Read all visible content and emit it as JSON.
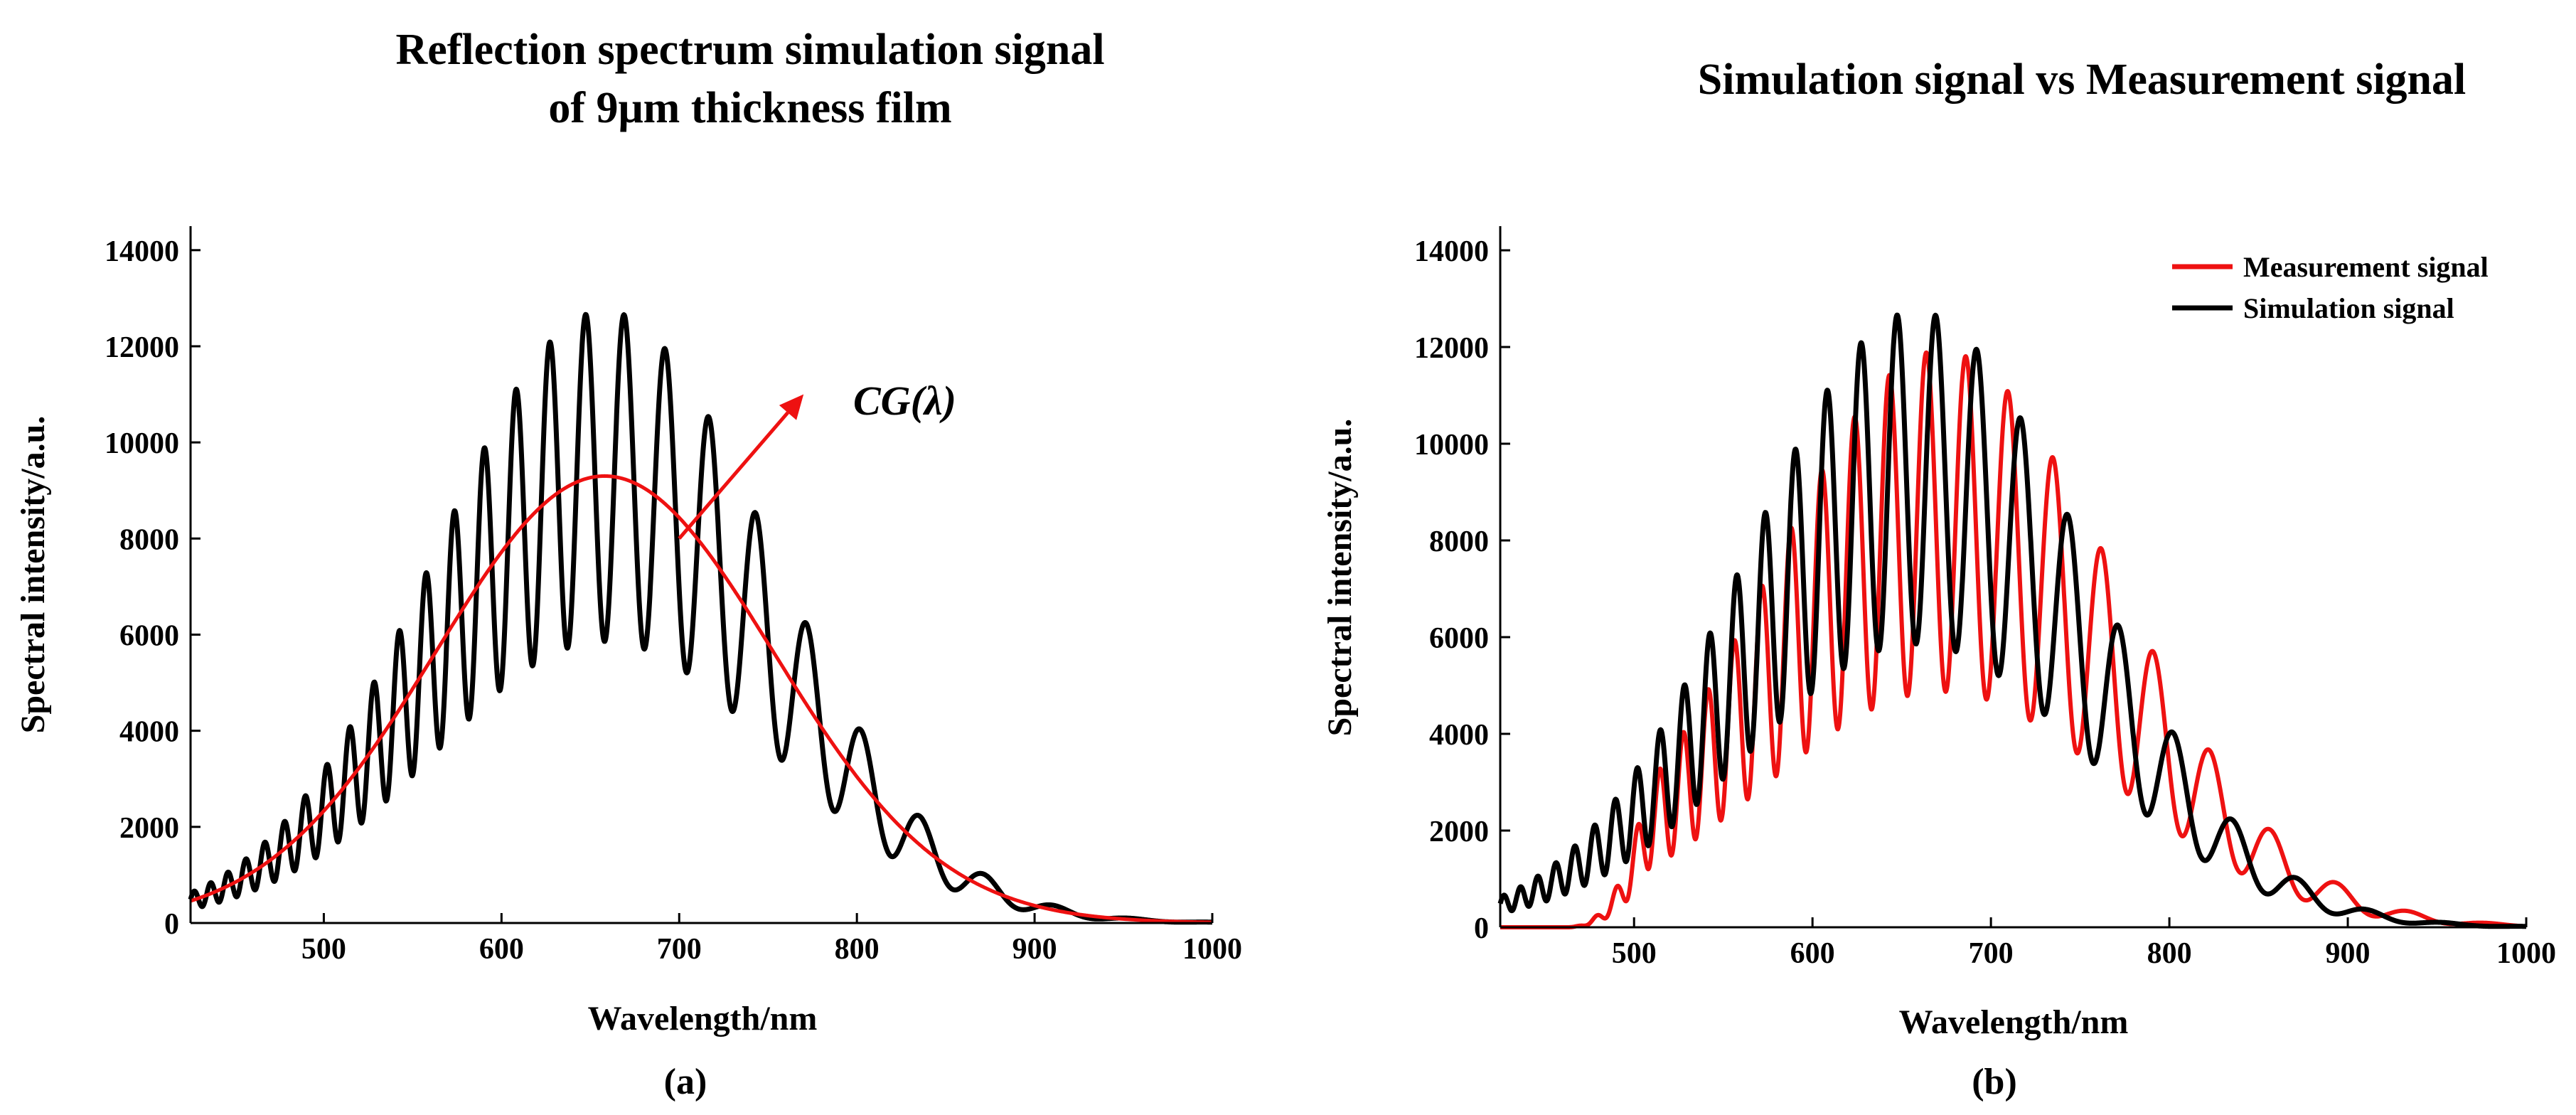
{
  "chart_data": [
    {
      "type": "line",
      "panel_label": "(a)",
      "title_lines": [
        "Reflection spectrum simulation signal",
        "of 9μm thickness film"
      ],
      "xlabel": "Wavelength/nm",
      "ylabel": "Spectral intensity/a.u.",
      "xlim": [
        425,
        1000
      ],
      "ylim": [
        0,
        14500
      ],
      "xticks": [
        500,
        600,
        700,
        800,
        900,
        1000
      ],
      "yticks": [
        0,
        2000,
        4000,
        6000,
        8000,
        10000,
        12000,
        14000
      ],
      "grid": false,
      "annotations": [
        {
          "text": "CG(λ)",
          "style": "italic-bold",
          "arrow_from_x": 700,
          "arrow_from_y": 8000,
          "arrow_to_x": 770,
          "arrow_to_y": 11000
        }
      ],
      "series": [
        {
          "name": "Simulation signal",
          "color": "#000000",
          "model": {
            "center": 658,
            "sigma": 95,
            "peak": 9300,
            "modulation": 0.37,
            "fringe_order_at_center": 30.5,
            "start_x": 425,
            "end_x": 1000
          }
        },
        {
          "name": "CG(λ)",
          "color": "#ee1111",
          "model": {
            "center": 658,
            "sigma": 95,
            "peak": 9300,
            "modulation": 0,
            "start_x": 425,
            "end_x": 1000
          }
        }
      ]
    },
    {
      "type": "line",
      "panel_label": "(b)",
      "title_lines": [
        "Simulation signal vs Measurement signal"
      ],
      "xlabel": "Wavelength/nm",
      "ylabel": "Spectral intensity/a.u.",
      "xlim": [
        425,
        1000
      ],
      "ylim": [
        0,
        14500
      ],
      "xticks": [
        500,
        600,
        700,
        800,
        900,
        1000
      ],
      "yticks": [
        0,
        2000,
        4000,
        6000,
        8000,
        10000,
        12000,
        14000
      ],
      "grid": false,
      "legend_position": "top-right",
      "series": [
        {
          "name": "Measurement signal",
          "color": "#ee1111",
          "model": {
            "center": 672,
            "sigma": 98,
            "peak": 8400,
            "modulation": 0.42,
            "fringe_order_at_center": 30.62,
            "start_x": 462,
            "end_x": 1000
          }
        },
        {
          "name": "Simulation signal",
          "color": "#000000",
          "model": {
            "center": 658,
            "sigma": 95,
            "peak": 9300,
            "modulation": 0.37,
            "fringe_order_at_center": 30.5,
            "start_x": 425,
            "end_x": 1000
          }
        }
      ]
    }
  ]
}
